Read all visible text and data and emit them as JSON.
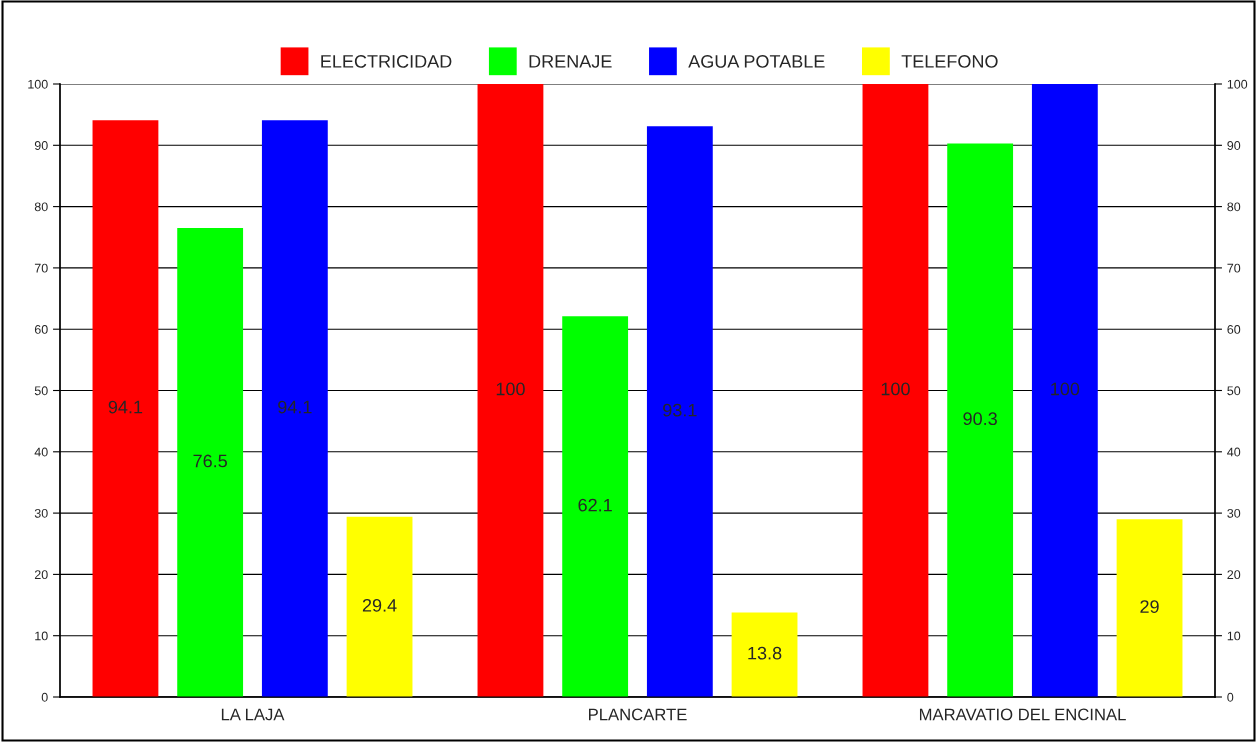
{
  "chart_data": {
    "type": "bar",
    "categories": [
      "LA LAJA",
      "PLANCARTE",
      "MARAVATIO DEL ENCINAL"
    ],
    "series": [
      {
        "name": "ELECTRICIDAD",
        "color": "#ff0000",
        "values": [
          94.1,
          100,
          100
        ]
      },
      {
        "name": "DRENAJE",
        "color": "#00ff00",
        "values": [
          76.5,
          62.1,
          90.3
        ]
      },
      {
        "name": "AGUA POTABLE",
        "color": "#0000ff",
        "values": [
          94.1,
          93.1,
          100
        ]
      },
      {
        "name": "TELEFONO",
        "color": "#ffff00",
        "values": [
          29.4,
          13.8,
          29
        ]
      }
    ],
    "ylim": [
      0,
      100
    ],
    "yticks": [
      0,
      10,
      20,
      30,
      40,
      50,
      60,
      70,
      80,
      90,
      100
    ],
    "y2lim": [
      0,
      100
    ],
    "y2ticks": [
      0,
      10,
      20,
      30,
      40,
      50,
      60,
      70,
      80,
      90,
      100
    ],
    "grid": true,
    "legend": "top",
    "data_labels": true
  }
}
